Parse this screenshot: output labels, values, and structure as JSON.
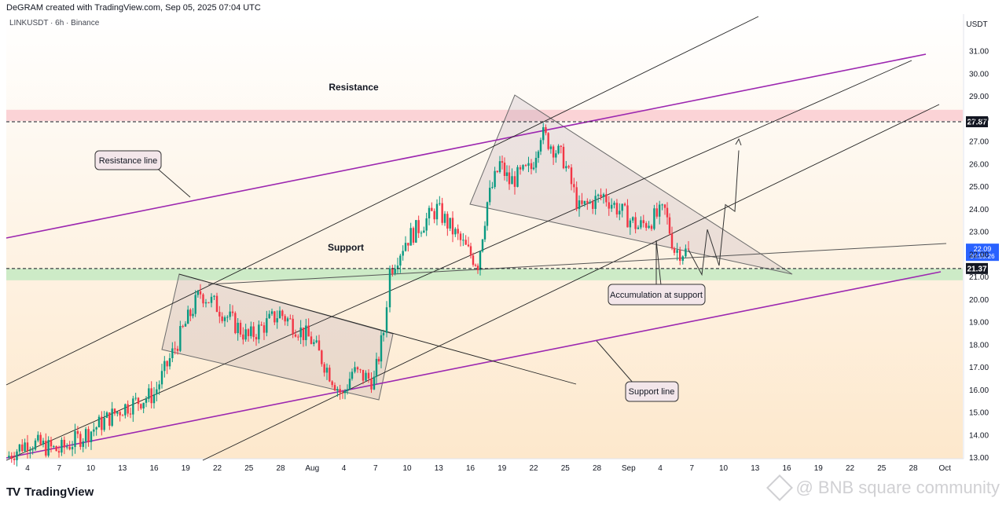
{
  "header": {
    "credit": "DeGRAM created with TradingView.com, Sep 05, 2025 07:04 UTC"
  },
  "symbol": {
    "label": "LINKUSDT · 6h · Binance"
  },
  "currency": "USDT",
  "branding": {
    "logo": "TV",
    "name": "TradingView"
  },
  "watermark": {
    "icon": "bnb-diamond-icon",
    "text": "@ BNB square community"
  },
  "colors": {
    "up_candle": "#089981",
    "down_candle": "#f23645",
    "resistance_zone": "#fbd3d6",
    "support_zone": "#cdebc7",
    "trendline_purple": "#9c27b0",
    "price_badge": "#2962ff",
    "background_top": "#ffffff",
    "background_bottom": "#fde9cf"
  },
  "chart_data": {
    "type": "candlestick",
    "title": "",
    "ylabel": "USDT",
    "ylim": [
      12.5,
      31.8
    ],
    "y_ticks": [
      "31.00",
      "30.00",
      "29.00",
      "28.00",
      "27.00",
      "26.00",
      "25.00",
      "24.00",
      "23.00",
      "22.00",
      "21.00",
      "20.00",
      "19.00",
      "18.00",
      "17.00",
      "16.00",
      "15.00",
      "14.00",
      "13.00"
    ],
    "x_ticks": [
      "4",
      "7",
      "10",
      "13",
      "16",
      "19",
      "22",
      "25",
      "28",
      "Aug",
      "4",
      "7",
      "10",
      "13",
      "16",
      "19",
      "22",
      "25",
      "28",
      "Sep",
      "4",
      "7",
      "10",
      "13",
      "16",
      "19",
      "22",
      "25",
      "28",
      "Oct"
    ],
    "price_levels": [
      {
        "value": 27.87,
        "label": "27.87",
        "style": "dashed"
      },
      {
        "value": 21.37,
        "label": "21.37",
        "style": "dashed"
      }
    ],
    "current_price": {
      "value": 22.09,
      "label": "22.09",
      "countdown": "04:55:26"
    },
    "zones": [
      {
        "name": "Resistance",
        "from": 27.9,
        "to": 28.4
      },
      {
        "name": "Support",
        "from": 20.85,
        "to": 21.37
      }
    ],
    "price_path": [
      [
        "0",
        13.0
      ],
      [
        "4",
        13.7
      ],
      [
        "7",
        13.3
      ],
      [
        "10",
        14.2
      ],
      [
        "13",
        15.2
      ],
      [
        "16",
        15.8
      ],
      [
        "19",
        18.9
      ],
      [
        "21",
        20.3
      ],
      [
        "22",
        19.7
      ],
      [
        "25",
        18.3
      ],
      [
        "28",
        19.4
      ],
      [
        "Aug",
        18.2
      ],
      [
        "4",
        15.7
      ],
      [
        "5",
        16.8
      ],
      [
        "7",
        16.4
      ],
      [
        "8",
        18.6
      ],
      [
        "9",
        21.3
      ],
      [
        "10",
        22.6
      ],
      [
        "13",
        24.0
      ],
      [
        "15",
        22.1
      ],
      [
        "16",
        21.6
      ],
      [
        "17",
        24.3
      ],
      [
        "18",
        26.0
      ],
      [
        "19",
        25.2
      ],
      [
        "21",
        25.8
      ],
      [
        "22",
        27.4
      ],
      [
        "25",
        26.2
      ],
      [
        "26",
        24.0
      ],
      [
        "28",
        24.6
      ],
      [
        "Sep",
        23.2
      ],
      [
        "2",
        23.9
      ],
      [
        "3",
        22.2
      ],
      [
        "4",
        22.09
      ]
    ],
    "projection": [
      [
        "4",
        22.2
      ],
      [
        "6",
        21.1
      ],
      [
        "7",
        23.1
      ],
      [
        "8",
        21.5
      ],
      [
        "9",
        24.2
      ],
      [
        "10",
        23.9
      ],
      [
        "11",
        26.6
      ]
    ],
    "annotations": [
      {
        "text": "Resistance line"
      },
      {
        "text": "Support line"
      },
      {
        "text": "Accumulation at support"
      },
      {
        "text": "Resistance"
      },
      {
        "text": "Support"
      }
    ]
  }
}
